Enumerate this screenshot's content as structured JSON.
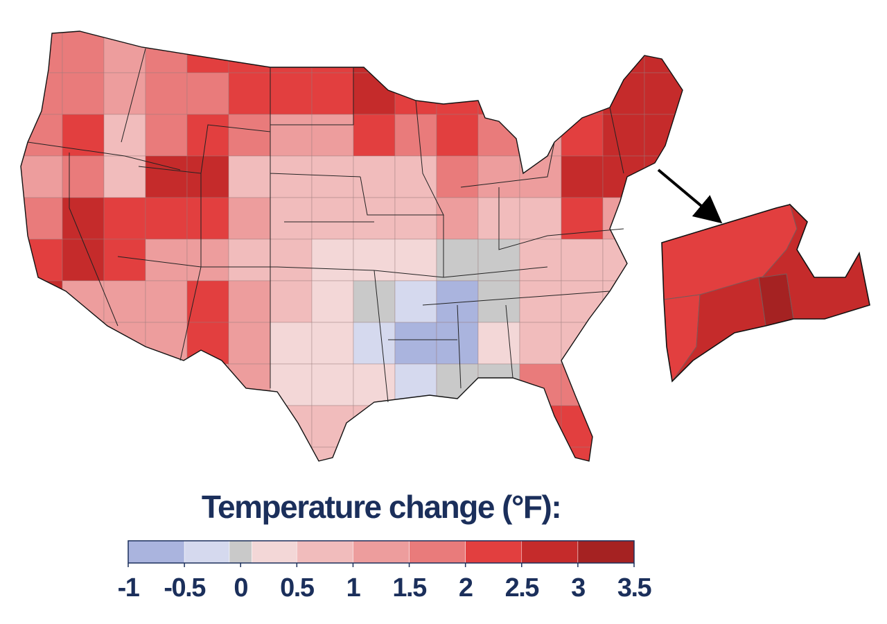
{
  "map": {
    "grid": [
      [
        1.5,
        1.5,
        1.2,
        1.8,
        2.2,
        2.2,
        2.2,
        2.2,
        2.7,
        2.2,
        2.2,
        2.2,
        2,
        2.2,
        2.7,
        2.7
      ],
      [
        1.5,
        1.5,
        1,
        1.5,
        1.8,
        2.2,
        2.2,
        2.2,
        2.7,
        2.2,
        2.2,
        2.2,
        1.8,
        2.2,
        2.7,
        2.5
      ],
      [
        1.5,
        2.2,
        0.8,
        1.8,
        2.2,
        1.5,
        1,
        1,
        2.2,
        1.8,
        2.2,
        1.8,
        1.2,
        2.2,
        2.5,
        2.5
      ],
      [
        1.2,
        1.5,
        0.8,
        2.7,
        2.7,
        0.8,
        0.8,
        0.5,
        0.5,
        0.8,
        1.8,
        1.2,
        1.2,
        2.5,
        2.5,
        2.5
      ],
      [
        1.5,
        2.7,
        2.2,
        2.2,
        2.2,
        1.2,
        0.8,
        0.6,
        0.6,
        0.8,
        1.2,
        0.8,
        0.8,
        2.2,
        1,
        1
      ],
      [
        2.2,
        2.7,
        2.2,
        1,
        1,
        0.8,
        0.5,
        0.4,
        0.3,
        0.3,
        0.05,
        0.05,
        0.8,
        0.8,
        0.8,
        0.8
      ],
      [
        2.7,
        1.2,
        1,
        1.2,
        2.2,
        1,
        0.5,
        0.3,
        0,
        -0.3,
        -0.8,
        0.05,
        0.8,
        0.8,
        0.8,
        0.8
      ],
      [
        2.7,
        2.2,
        1.2,
        1.2,
        2.2,
        1,
        0.3,
        0.3,
        -0.3,
        -0.8,
        -0.8,
        0.3,
        0.8,
        0.8,
        0.8,
        0.8
      ],
      [
        1,
        1,
        1.2,
        1.2,
        1.2,
        1.2,
        0.3,
        0.3,
        0.3,
        -0.3,
        0.05,
        0.05,
        1.5,
        1.5,
        1.5,
        1.5
      ],
      [
        0.8,
        0.8,
        0.8,
        0.8,
        0.8,
        0.8,
        0.8,
        0.8,
        0.8,
        0.5,
        0.5,
        0.5,
        2.2,
        2.2,
        2.2,
        2.2
      ],
      [
        0.8,
        0.8,
        0.8,
        0.8,
        0.8,
        0.8,
        0.8,
        0.8,
        0.8,
        0.8,
        0.8,
        0.8,
        2.2,
        2.2,
        2.2,
        2.2
      ]
    ],
    "inset": [
      2.2,
      2.2,
      2.7,
      3.2,
      2.7
    ]
  },
  "legend": {
    "title": "Temperature change (°F):",
    "range": [
      -1,
      3.5
    ],
    "ticks": [
      -1,
      -0.5,
      0,
      0.5,
      1,
      1.5,
      2,
      2.5,
      3,
      3.5
    ],
    "bins": [
      {
        "from": -1,
        "to": -0.5,
        "color": "#aab4de"
      },
      {
        "from": -0.5,
        "to": -0.1,
        "color": "#d5d9ee"
      },
      {
        "from": -0.1,
        "to": 0.1,
        "color": "#c9c9c9"
      },
      {
        "from": 0.1,
        "to": 0.5,
        "color": "#f3d7d7"
      },
      {
        "from": 0.5,
        "to": 1,
        "color": "#f1bcbc"
      },
      {
        "from": 1,
        "to": 1.5,
        "color": "#ed9d9d"
      },
      {
        "from": 1.5,
        "to": 2,
        "color": "#e97b7b"
      },
      {
        "from": 2,
        "to": 2.5,
        "color": "#e23f3f"
      },
      {
        "from": 2.5,
        "to": 3,
        "color": "#c52b2b"
      },
      {
        "from": 3,
        "to": 3.5,
        "color": "#a52222"
      }
    ]
  }
}
